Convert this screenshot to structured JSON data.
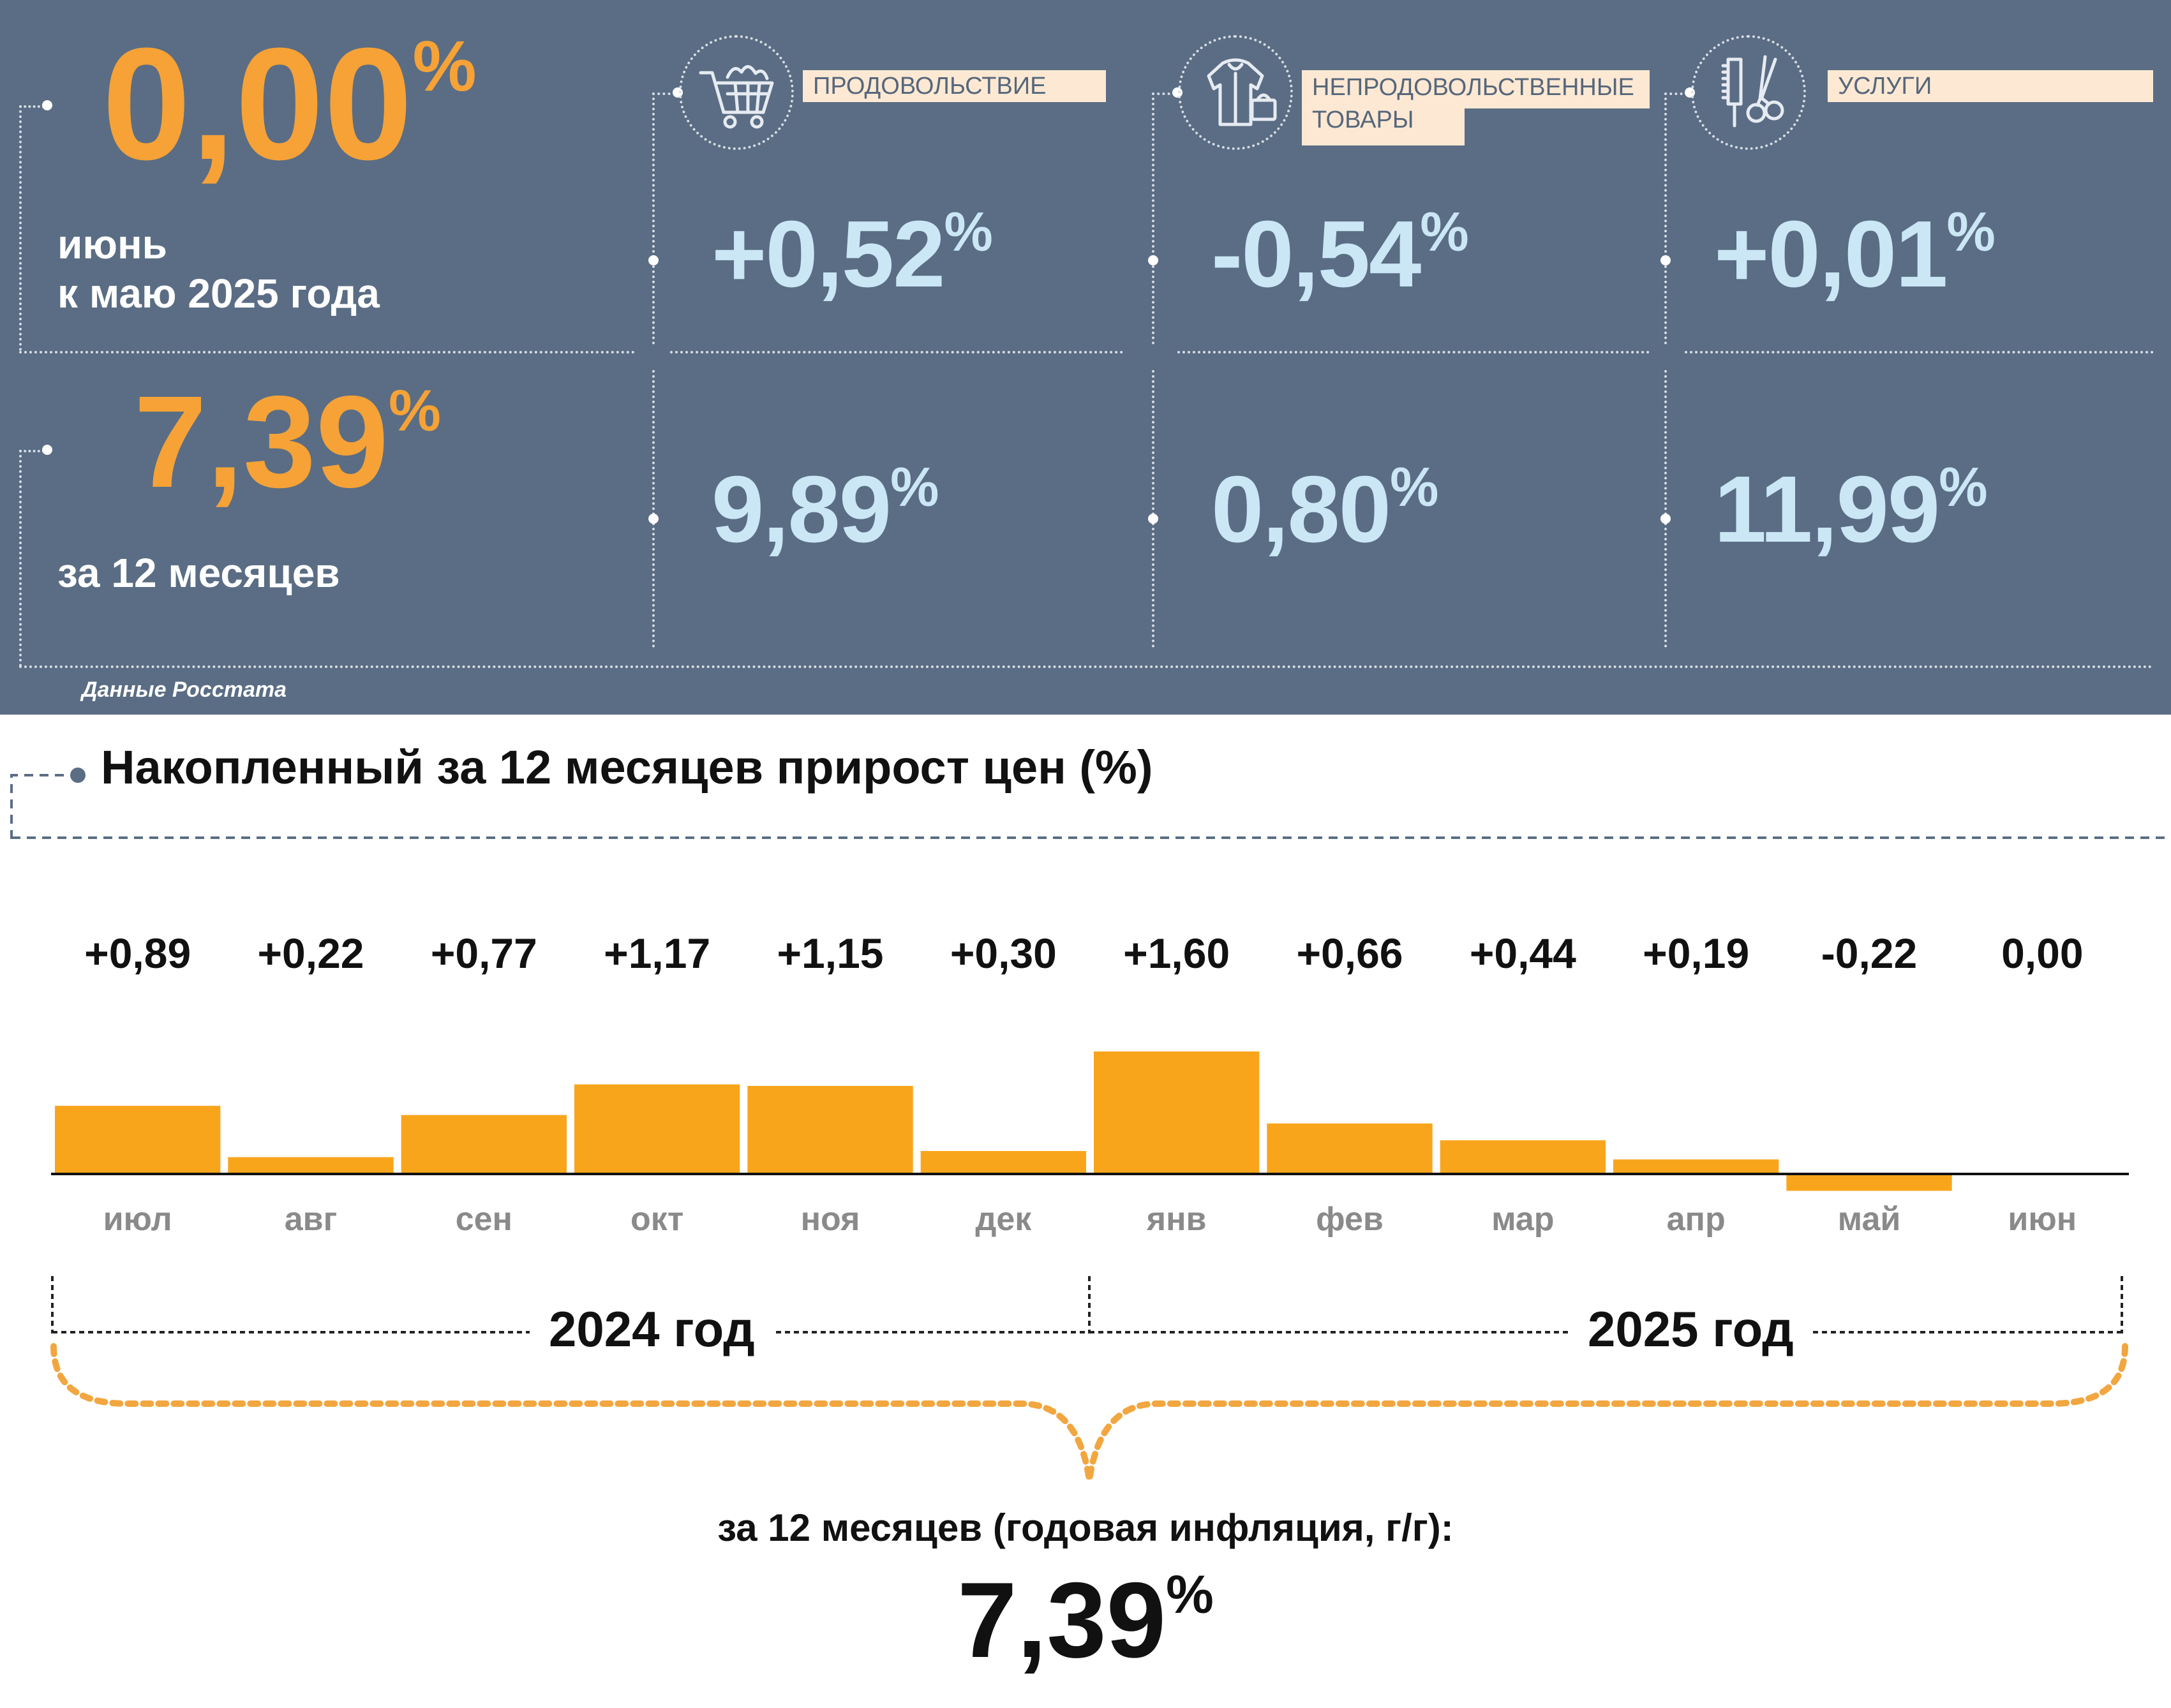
{
  "summary": {
    "monthly": {
      "value": "0,00",
      "pct": "%",
      "label_line1": "июнь",
      "label_line2": "к маю 2025 года"
    },
    "annual": {
      "value": "7,39",
      "pct": "%",
      "label": "за 12 месяцев"
    },
    "source": "Данные Росстата"
  },
  "categories": [
    {
      "label": "ПРОДОВОЛЬСТВИЕ",
      "icon": "shopping-cart-icon",
      "monthly": "+0,52",
      "annual": "9,89"
    },
    {
      "label_line1": "НЕПРОДОВОЛЬСТВЕННЫЕ",
      "label_line2": "ТОВАРЫ",
      "icon": "clothes-icon",
      "monthly": "-0,54",
      "annual": "0,80"
    },
    {
      "label": "УСЛУГИ",
      "icon": "scissors-comb-icon",
      "monthly": "+0,01",
      "annual": "11,99"
    }
  ],
  "chart_section": {
    "title": "Накопленный за 12 месяцев прирост цен (%)",
    "year_2024": "2024 год",
    "year_2025": "2025 год",
    "caption": "за 12 месяцев (годовая инфляция, г/г):",
    "total_value": "7,39",
    "total_pct": "%"
  },
  "chart_data": {
    "type": "bar",
    "title": "Накопленный за 12 месяцев прирост цен (%)",
    "categories": [
      "июл",
      "авг",
      "сен",
      "окт",
      "ноя",
      "дек",
      "янв",
      "фев",
      "мар",
      "апр",
      "май",
      "июн"
    ],
    "values": [
      0.89,
      0.22,
      0.77,
      1.17,
      1.15,
      0.3,
      1.6,
      0.66,
      0.44,
      0.19,
      -0.22,
      0.0
    ],
    "labels": [
      "+0,89",
      "+0,22",
      "+0,77",
      "+1,17",
      "+1,15",
      "+0,30",
      "+1,60",
      "+0,66",
      "+0,44",
      "+0,19",
      "-0,22",
      "0,00"
    ],
    "bar_color": "#f9a51b",
    "grid": false,
    "legend": "none"
  },
  "colors": {
    "panel_bg": "#5a6d84",
    "accent_orange": "#f6a236",
    "value_blue": "#cbe6f5",
    "label_bg": "#fde9d3"
  }
}
